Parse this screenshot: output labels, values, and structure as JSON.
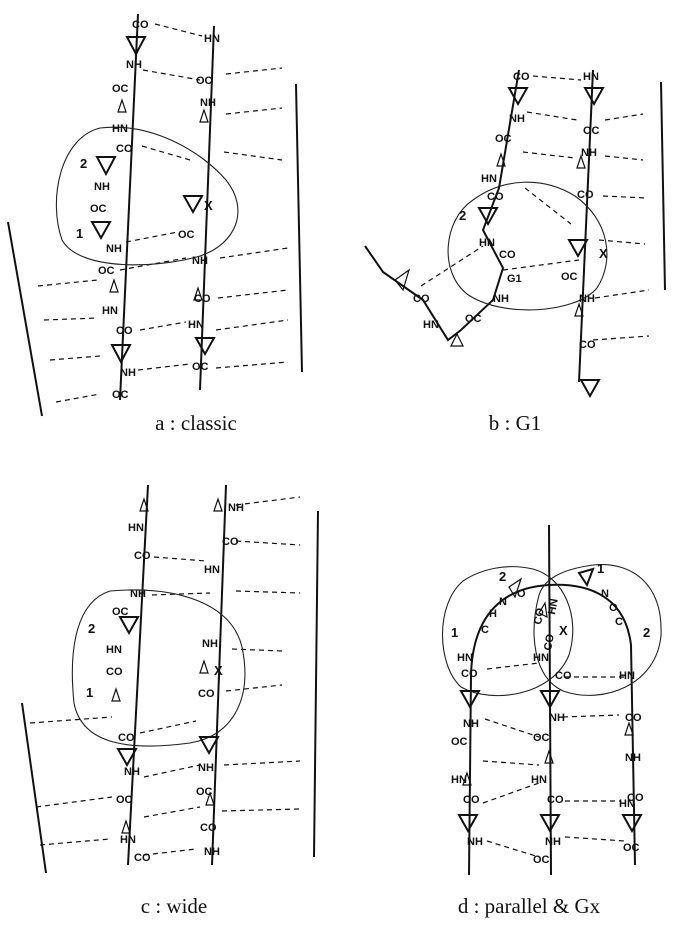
{
  "panels": {
    "a": {
      "caption": "a : classic",
      "left_strand": [
        "CO",
        "NH",
        "OC",
        "HN",
        "CO",
        "NH",
        "OC",
        "NH",
        "OC",
        "HN",
        "CO",
        "NH",
        "OC"
      ],
      "right_strand": [
        "HN",
        "OC",
        "NH",
        "OC",
        "NH",
        "CO",
        "HN",
        "OC"
      ],
      "numbers": [
        "2",
        "1"
      ],
      "x_mark": "X"
    },
    "b": {
      "caption": "b : G1",
      "left_strand": [
        "CO",
        "NH",
        "OC",
        "HN",
        "CO",
        "HN",
        "CO",
        "G1",
        "NH",
        "OC",
        "CO",
        "HN"
      ],
      "right_strand": [
        "HN",
        "OC",
        "NH",
        "CO",
        "OC",
        "NH",
        "CO"
      ],
      "numbers": [
        "2"
      ],
      "x_mark": "X"
    },
    "c": {
      "caption": "c : wide",
      "left_strand": [
        "HN",
        "CO",
        "NH",
        "OC",
        "HN",
        "CO",
        "CO",
        "NH",
        "OC",
        "HN",
        "CO"
      ],
      "right_strand": [
        "NH",
        "CO",
        "HN",
        "NH",
        "CO",
        "NH",
        "OC",
        "CO",
        "NH"
      ],
      "numbers": [
        "2",
        "1"
      ],
      "x_mark": "X"
    },
    "d": {
      "caption": "d : parallel & Gx",
      "strand1": [
        "HN",
        "CO",
        "NH",
        "OC",
        "HN",
        "CO",
        "NH"
      ],
      "strand2": [
        "HN",
        "CO",
        "NH",
        "OC",
        "HN",
        "CO",
        "NH",
        "OC"
      ],
      "strand3": [
        "HN",
        "CO",
        "NH",
        "CO",
        "HN",
        "OC"
      ],
      "top_labels": [
        "C",
        "H",
        "N",
        "O",
        "CO",
        "HN",
        "CO",
        "N",
        "O",
        "C"
      ],
      "numbers": [
        "2",
        "1",
        "1",
        "2"
      ],
      "x_mark": "X"
    }
  }
}
